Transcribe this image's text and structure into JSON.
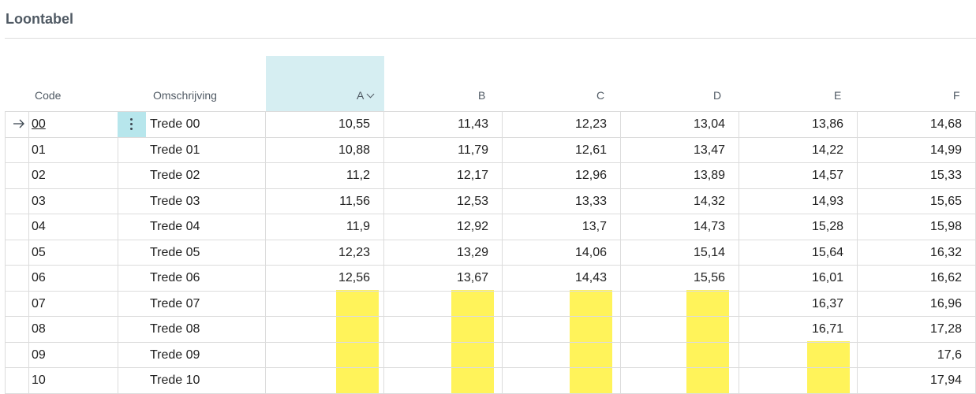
{
  "page": {
    "title": "Loontabel"
  },
  "columns": {
    "code": "Code",
    "omschrijving": "Omschrijving",
    "values": [
      "A",
      "B",
      "C",
      "D",
      "E",
      "F"
    ]
  },
  "rows": [
    {
      "code": "00",
      "desc": "Trede 00",
      "v": [
        "10,55",
        "11,43",
        "12,23",
        "13,04",
        "13,86",
        "14,68"
      ]
    },
    {
      "code": "01",
      "desc": "Trede 01",
      "v": [
        "10,88",
        "11,79",
        "12,61",
        "13,47",
        "14,22",
        "14,99"
      ]
    },
    {
      "code": "02",
      "desc": "Trede 02",
      "v": [
        "11,2",
        "12,17",
        "12,96",
        "13,89",
        "14,57",
        "15,33"
      ]
    },
    {
      "code": "03",
      "desc": "Trede 03",
      "v": [
        "11,56",
        "12,53",
        "13,33",
        "14,32",
        "14,93",
        "15,65"
      ]
    },
    {
      "code": "04",
      "desc": "Trede 04",
      "v": [
        "11,9",
        "12,92",
        "13,7",
        "14,73",
        "15,28",
        "15,98"
      ]
    },
    {
      "code": "05",
      "desc": "Trede 05",
      "v": [
        "12,23",
        "13,29",
        "14,06",
        "15,14",
        "15,64",
        "16,32"
      ]
    },
    {
      "code": "06",
      "desc": "Trede 06",
      "v": [
        "12,56",
        "13,67",
        "14,43",
        "15,56",
        "16,01",
        "16,62"
      ]
    },
    {
      "code": "07",
      "desc": "Trede 07",
      "v": [
        "",
        "",
        "",
        "",
        "16,37",
        "16,96"
      ]
    },
    {
      "code": "08",
      "desc": "Trede 08",
      "v": [
        "",
        "",
        "",
        "",
        "16,71",
        "17,28"
      ]
    },
    {
      "code": "09",
      "desc": "Trede 09",
      "v": [
        "",
        "",
        "",
        "",
        "",
        "17,6"
      ]
    },
    {
      "code": "10",
      "desc": "Trede 10",
      "v": [
        "",
        "",
        "",
        "",
        "",
        "17,94"
      ]
    }
  ],
  "colors": {
    "highlight": "#fff35a",
    "selected_header": "#d6eef2",
    "row_menu": "#b7e6ec"
  },
  "icons": {
    "row_indicator": "arrow-right-icon",
    "row_menu": "more-vertical-icon",
    "sort": "chevron-down-icon"
  }
}
